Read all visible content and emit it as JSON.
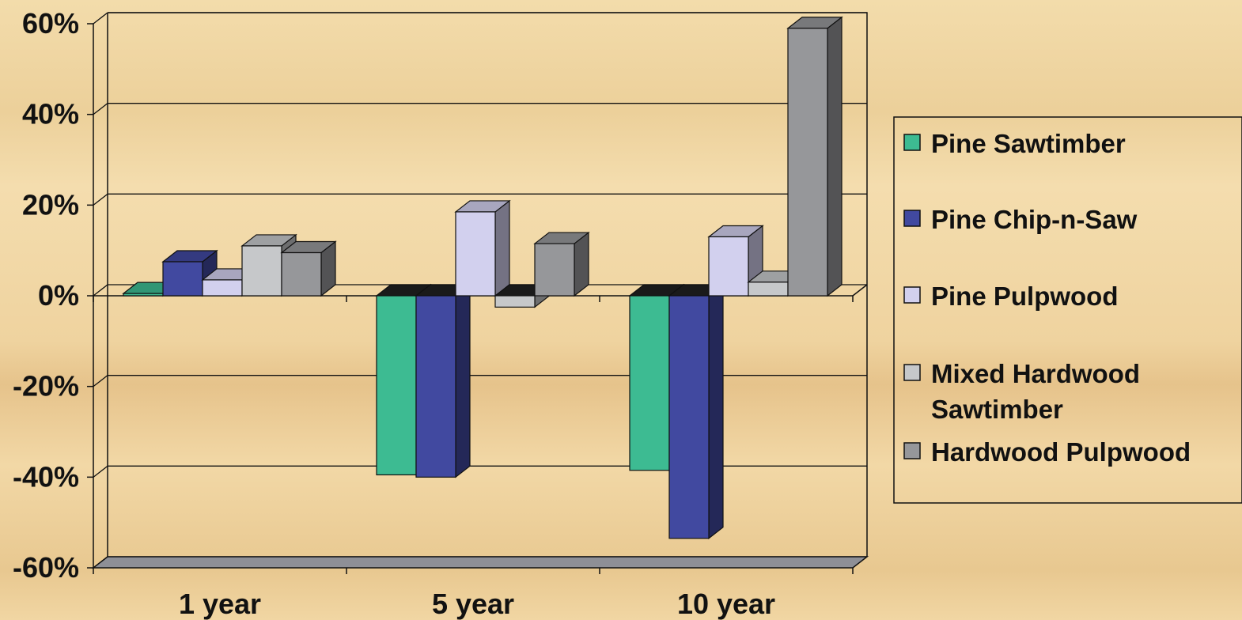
{
  "chart_data": {
    "type": "bar",
    "categories": [
      "1 year",
      "5 year",
      "10 year"
    ],
    "series": [
      {
        "name": "Pine Sawtimber",
        "values": [
          0.5,
          -39.5,
          -38.5
        ],
        "color": "#3dbb92"
      },
      {
        "name": "Pine Chip-n-Saw",
        "values": [
          7.5,
          -40,
          -53.5
        ],
        "color": "#4149a0"
      },
      {
        "name": "Pine Pulpwood",
        "values": [
          3.5,
          18.5,
          13
        ],
        "color": "#d2d0ee"
      },
      {
        "name": "Mixed Hardwood Sawtimber",
        "values": [
          11,
          -2.5,
          3
        ],
        "color": "#c6c8ca"
      },
      {
        "name": "Hardwood Pulpwood",
        "values": [
          9.5,
          11.5,
          59
        ],
        "color": "#96979a"
      }
    ],
    "yticks": [
      "60%",
      "40%",
      "20%",
      "0%",
      "-20%",
      "-40%",
      "-60%"
    ],
    "ylim": [
      -60,
      60
    ],
    "grid": true,
    "legend_position": "right",
    "three_d": true
  }
}
